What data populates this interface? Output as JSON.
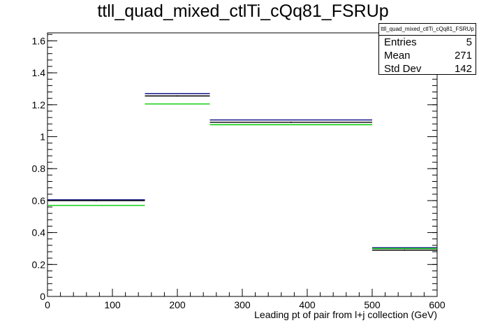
{
  "title": "ttll_quad_mixed_ctlTi_cQq81_FSRUp",
  "stats": {
    "name": "ttll_quad_mixed_ctlTi_cQq81_FSRUp",
    "entries_label": "Entries",
    "entries_value": "5",
    "mean_label": "Mean",
    "mean_value": "271",
    "std_label": "Std Dev",
    "std_value": "142"
  },
  "chart_data": {
    "type": "bar",
    "xlabel": "Leading pt of pair from l+j collection (GeV)",
    "ylabel": "",
    "xlim": [
      0,
      600
    ],
    "ylim": [
      0,
      1.65
    ],
    "bins": [
      [
        0,
        150
      ],
      [
        150,
        250
      ],
      [
        250,
        500
      ],
      [
        500,
        600
      ]
    ],
    "series": [
      {
        "color": "#000080",
        "values": [
          0.605,
          1.27,
          1.105,
          0.305
        ]
      },
      {
        "color": "#000000",
        "values": [
          0.6,
          1.255,
          1.09,
          0.29
        ]
      },
      {
        "color": "#00cc00",
        "values": [
          0.57,
          1.205,
          1.075,
          0.3
        ]
      }
    ],
    "xticks": [
      0,
      100,
      200,
      300,
      400,
      500,
      600
    ],
    "yticks": [
      0,
      0.2,
      0.4,
      0.6,
      0.8,
      1,
      1.2,
      1.4,
      1.6
    ],
    "ytick_labels": [
      "0",
      "0.2",
      "0.4",
      "0.6",
      "0.8",
      "1",
      "1.2",
      "1.4",
      "1.6"
    ],
    "grid": false
  }
}
